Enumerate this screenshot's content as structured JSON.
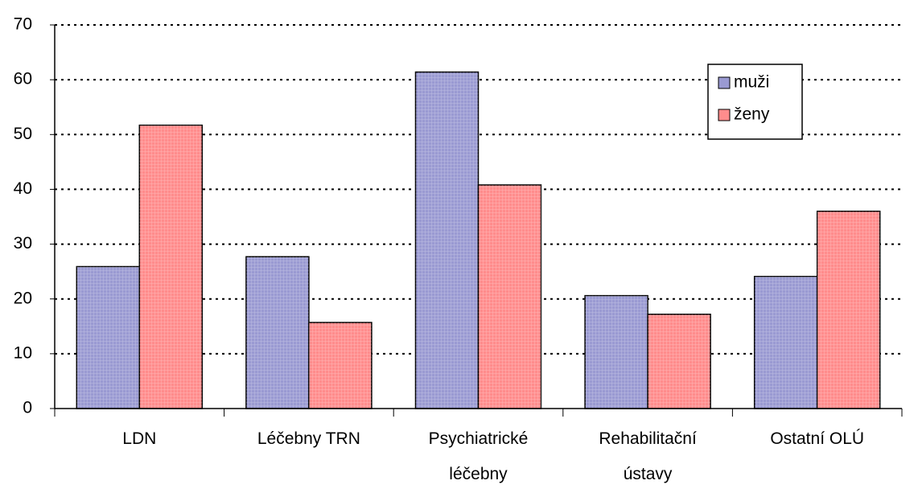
{
  "chart_data": {
    "type": "bar",
    "categories": [
      "LDN",
      "Léčebny TRN",
      "Psychiatrické léčebny",
      "Rehabilitační ústavy",
      "Ostatní OLÚ"
    ],
    "series": [
      {
        "name": "muži",
        "color": "#9a9ad2",
        "values": [
          25.9,
          27.7,
          61.4,
          20.6,
          24.1
        ]
      },
      {
        "name": "ženy",
        "color": "#ff8c8c",
        "values": [
          51.7,
          15.7,
          40.8,
          17.2,
          36.0
        ]
      }
    ],
    "ylim": [
      0,
      70
    ],
    "yticks": [
      0,
      10,
      20,
      30,
      40,
      50,
      60,
      70
    ],
    "grid": true,
    "legend": "upper right"
  }
}
